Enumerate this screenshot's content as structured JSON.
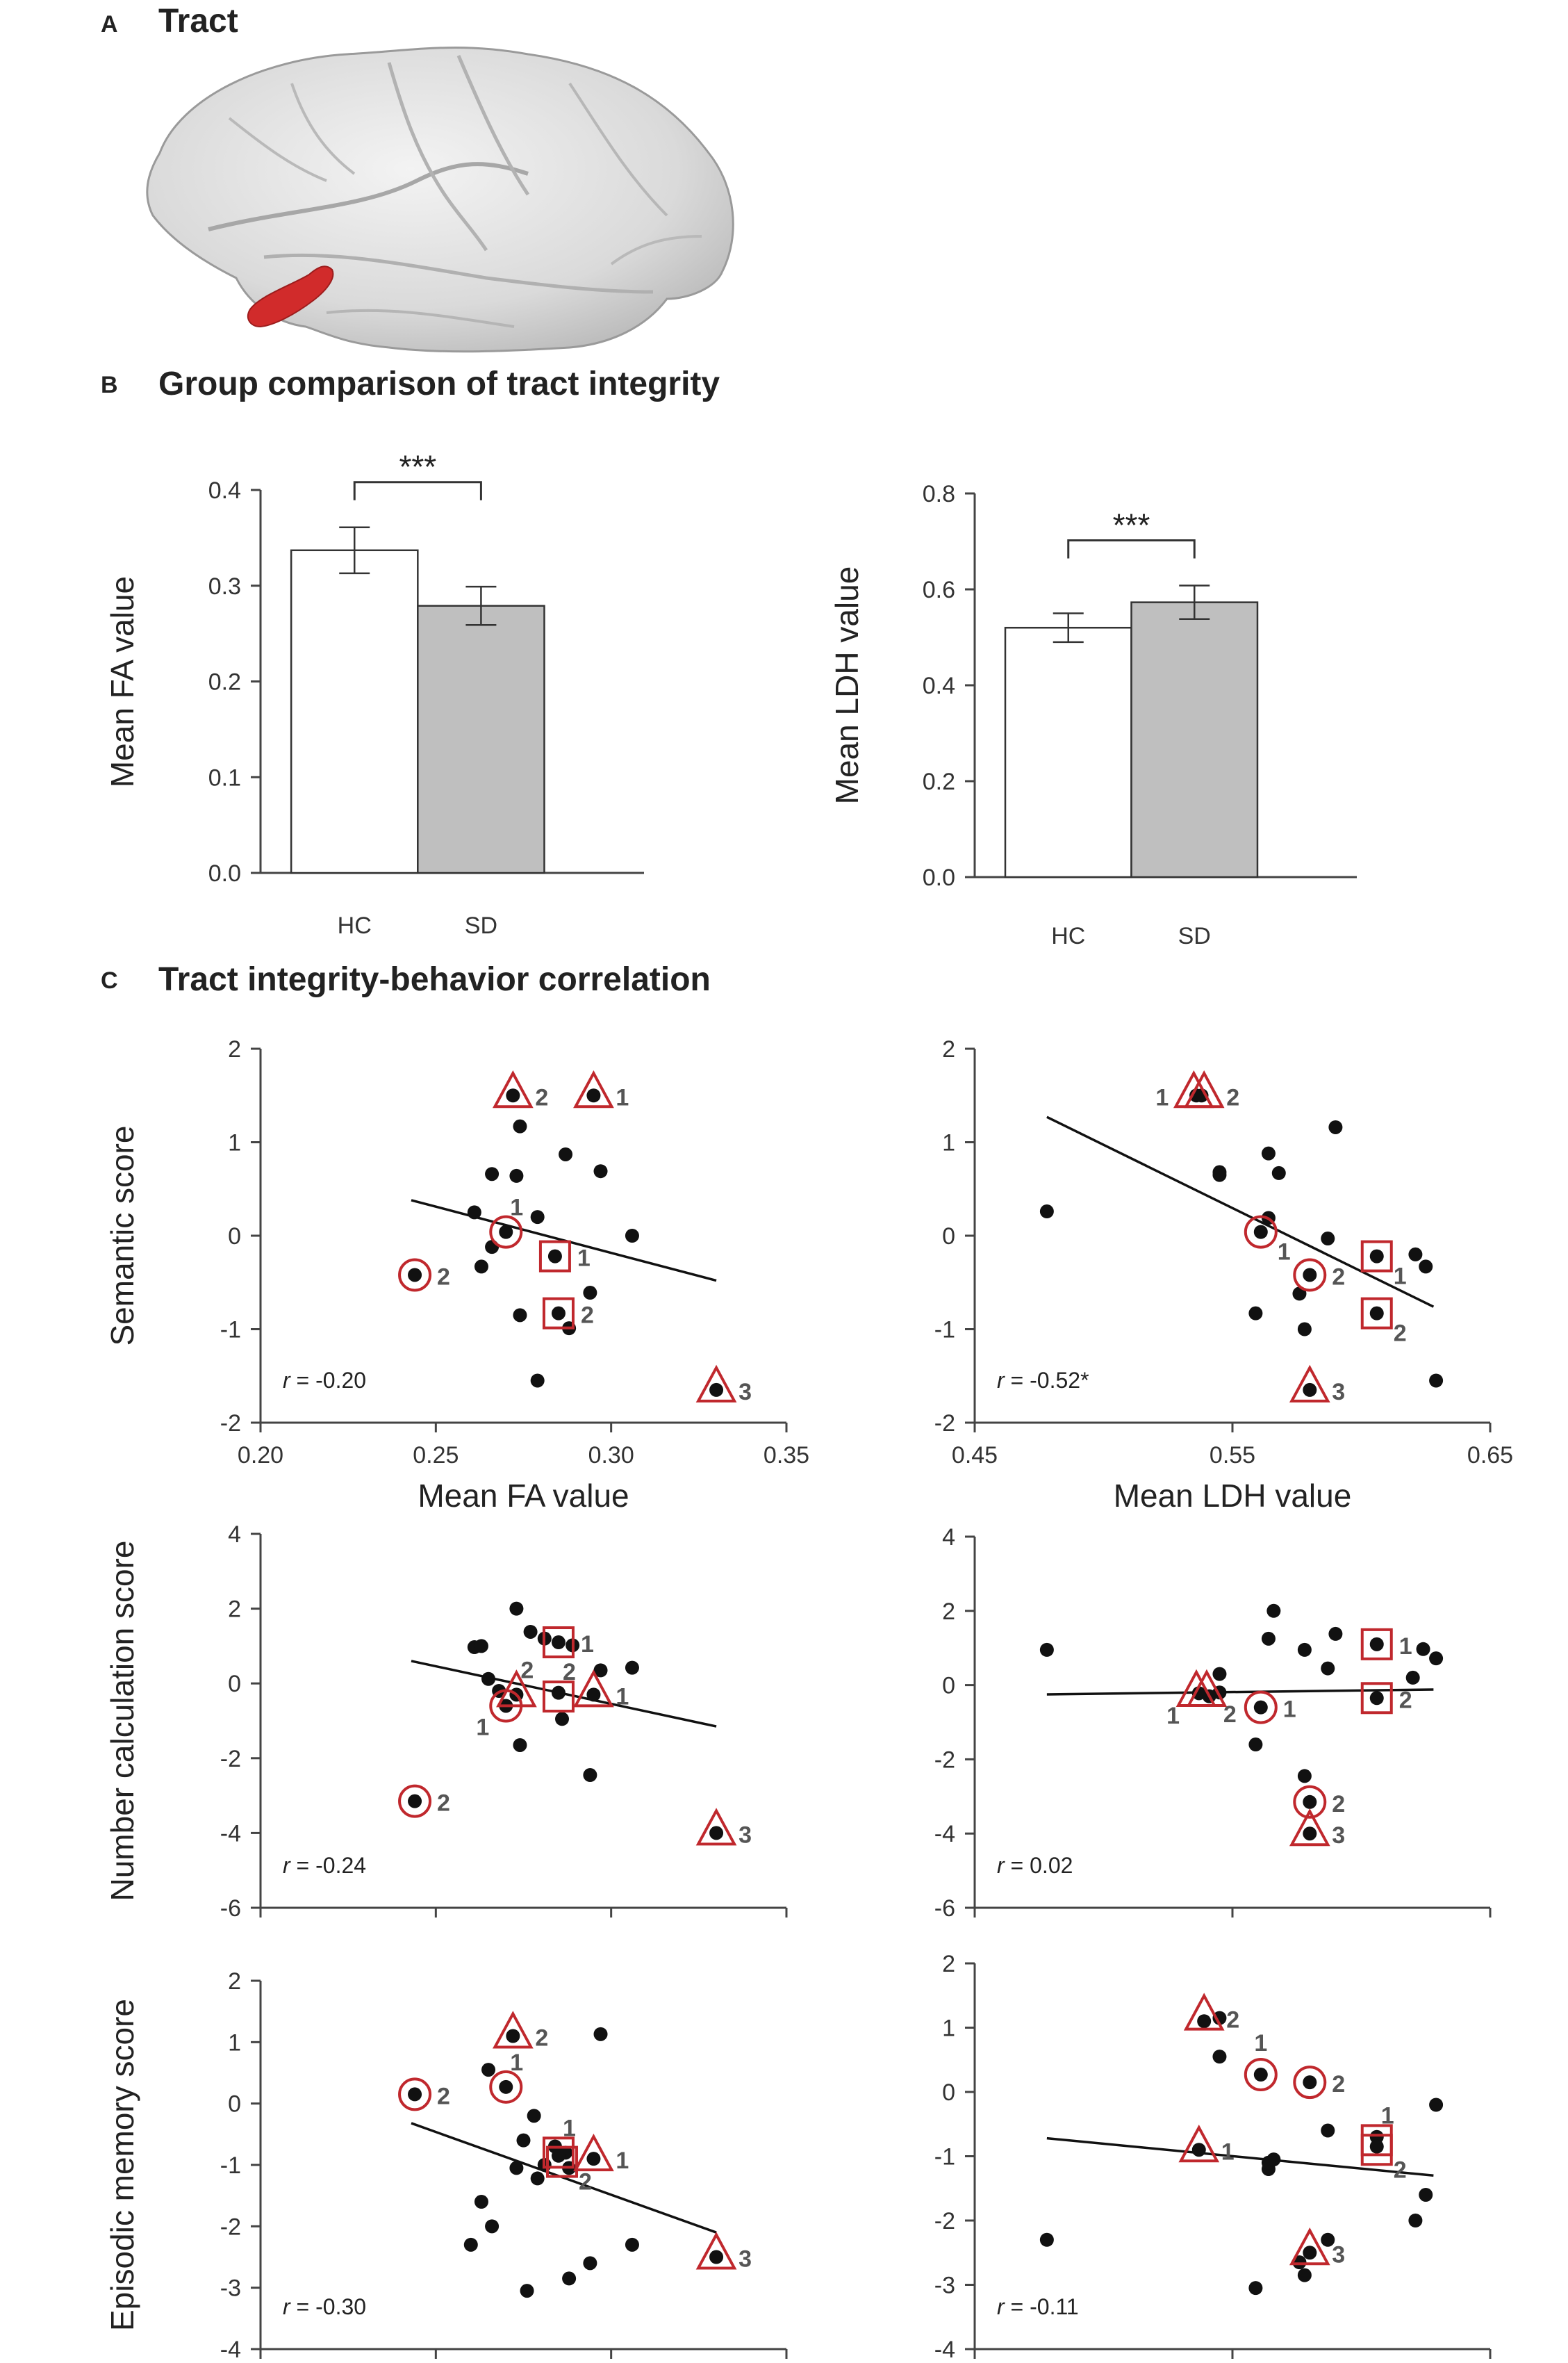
{
  "panel_a": {
    "letter": "A",
    "title": "Tract"
  },
  "panel_b": {
    "letter": "B",
    "title": "Group comparison of tract integrity"
  },
  "panel_c": {
    "letter": "C",
    "title": "Tract integrity-behavior correlation"
  },
  "colors": {
    "marker": "#c0282d",
    "hc_bar": "#ffffff",
    "sd_bar": "#bfbfbf",
    "brain": "#dcdcdc",
    "tract": "#d12b2b"
  },
  "chart_data": [
    {
      "id": "fa_bar",
      "type": "bar",
      "categories": [
        "HC",
        "SD"
      ],
      "values": [
        0.337,
        0.279
      ],
      "errors": [
        0.024,
        0.02
      ],
      "ylabel": "Mean FA value",
      "ylim": [
        0,
        0.4
      ],
      "yticks": [
        "0.0",
        "0.1",
        "0.2",
        "0.3",
        "0.4"
      ],
      "significance": "***"
    },
    {
      "id": "ldh_bar",
      "type": "bar",
      "categories": [
        "HC",
        "SD"
      ],
      "values": [
        0.52,
        0.573
      ],
      "errors": [
        0.03,
        0.035
      ],
      "ylabel": "Mean LDH value",
      "ylim": [
        0,
        0.8
      ],
      "yticks": [
        "0.0",
        "0.2",
        "0.4",
        "0.6",
        "0.8"
      ],
      "significance": "***"
    },
    {
      "id": "fa_sem",
      "type": "scatter",
      "xlim": [
        0.2,
        0.35
      ],
      "ylim": [
        -2,
        2
      ],
      "xticks": [
        "0.20",
        "0.25",
        "0.30",
        "0.35"
      ],
      "yticks": [
        "-2",
        "-1",
        "0",
        "1",
        "2"
      ],
      "xlabel": "Mean FA value",
      "ylabel": "Semantic score",
      "r_label": "r",
      "r_value": " = -0.20",
      "fit": [
        [
          0.243,
          0.38
        ],
        [
          0.33,
          -0.48
        ]
      ],
      "points": [
        [
          0.272,
          1.5
        ],
        [
          0.295,
          1.5
        ],
        [
          0.274,
          1.17
        ],
        [
          0.287,
          0.87
        ],
        [
          0.297,
          0.69
        ],
        [
          0.266,
          0.66
        ],
        [
          0.273,
          0.64
        ],
        [
          0.261,
          0.25
        ],
        [
          0.279,
          0.2
        ],
        [
          0.27,
          0.04
        ],
        [
          0.306,
          0.0
        ],
        [
          0.266,
          -0.12
        ],
        [
          0.284,
          -0.22
        ],
        [
          0.263,
          -0.33
        ],
        [
          0.244,
          -0.42
        ],
        [
          0.294,
          -0.61
        ],
        [
          0.285,
          -0.83
        ],
        [
          0.274,
          -0.85
        ],
        [
          0.288,
          -0.99
        ],
        [
          0.279,
          -1.55
        ],
        [
          0.33,
          -1.65
        ]
      ],
      "markers": [
        {
          "shape": "triangle",
          "x": 0.272,
          "y": 1.5,
          "label": "2"
        },
        {
          "shape": "triangle",
          "x": 0.295,
          "y": 1.5,
          "label": "1"
        },
        {
          "shape": "circle",
          "x": 0.27,
          "y": 0.04,
          "label": "1",
          "pos": "above-right"
        },
        {
          "shape": "square",
          "x": 0.284,
          "y": -0.22,
          "label": "1"
        },
        {
          "shape": "circle",
          "x": 0.244,
          "y": -0.42,
          "label": "2"
        },
        {
          "shape": "square",
          "x": 0.285,
          "y": -0.83,
          "label": "2"
        },
        {
          "shape": "triangle",
          "x": 0.33,
          "y": -1.65,
          "label": "3"
        }
      ]
    },
    {
      "id": "ldh_sem",
      "type": "scatter",
      "xlim": [
        0.45,
        0.65
      ],
      "ylim": [
        -2,
        2
      ],
      "xticks": [
        "0.45",
        "0.55",
        "0.65"
      ],
      "yticks": [
        "-2",
        "-1",
        "0",
        "1",
        "2"
      ],
      "xlabel": "Mean LDH value",
      "ylabel": "",
      "r_label": "r",
      "r_value": " = -0.52*",
      "fit": [
        [
          0.478,
          1.27
        ],
        [
          0.628,
          -0.76
        ]
      ],
      "points": [
        [
          0.536,
          1.5
        ],
        [
          0.538,
          1.5
        ],
        [
          0.59,
          1.16
        ],
        [
          0.564,
          0.88
        ],
        [
          0.545,
          0.68
        ],
        [
          0.545,
          0.65
        ],
        [
          0.568,
          0.67
        ],
        [
          0.478,
          0.26
        ],
        [
          0.564,
          0.19
        ],
        [
          0.561,
          0.04
        ],
        [
          0.587,
          -0.03
        ],
        [
          0.606,
          -0.22
        ],
        [
          0.621,
          -0.2
        ],
        [
          0.625,
          -0.33
        ],
        [
          0.58,
          -0.42
        ],
        [
          0.576,
          -0.62
        ],
        [
          0.559,
          -0.83
        ],
        [
          0.606,
          -0.83
        ],
        [
          0.578,
          -1.0
        ],
        [
          0.629,
          -1.55
        ],
        [
          0.58,
          -1.65
        ]
      ],
      "markers": [
        {
          "shape": "triangle",
          "x": 0.535,
          "y": 1.5,
          "label": "1",
          "pos": "left"
        },
        {
          "shape": "triangle",
          "x": 0.539,
          "y": 1.5,
          "label": "2"
        },
        {
          "shape": "circle",
          "x": 0.561,
          "y": 0.04,
          "label": "1",
          "pos": "below-right"
        },
        {
          "shape": "square",
          "x": 0.606,
          "y": -0.22,
          "label": "1",
          "pos": "below-right"
        },
        {
          "shape": "circle",
          "x": 0.58,
          "y": -0.42,
          "label": "2"
        },
        {
          "shape": "square",
          "x": 0.606,
          "y": -0.83,
          "label": "2",
          "pos": "below-right"
        },
        {
          "shape": "triangle",
          "x": 0.58,
          "y": -1.65,
          "label": "3"
        }
      ]
    },
    {
      "id": "fa_num",
      "type": "scatter",
      "xlim": [
        0.2,
        0.35
      ],
      "ylim": [
        -6,
        4
      ],
      "xticks": [],
      "yticks": [
        "-6",
        "-4",
        "-2",
        "0",
        "2",
        "4"
      ],
      "xlabel": "",
      "ylabel": "Number calculation score",
      "r_label": "r",
      "r_value": " = -0.24",
      "fit": [
        [
          0.243,
          0.6
        ],
        [
          0.33,
          -1.15
        ]
      ],
      "points": [
        [
          0.273,
          2.0
        ],
        [
          0.261,
          0.97
        ],
        [
          0.263,
          1.0
        ],
        [
          0.277,
          1.38
        ],
        [
          0.281,
          1.2
        ],
        [
          0.285,
          1.1
        ],
        [
          0.289,
          1.02
        ],
        [
          0.297,
          0.35
        ],
        [
          0.306,
          0.42
        ],
        [
          0.265,
          0.12
        ],
        [
          0.268,
          -0.2
        ],
        [
          0.273,
          -0.3
        ],
        [
          0.285,
          -0.25
        ],
        [
          0.295,
          -0.3
        ],
        [
          0.27,
          -0.6
        ],
        [
          0.286,
          -0.95
        ],
        [
          0.274,
          -1.65
        ],
        [
          0.294,
          -2.45
        ],
        [
          0.244,
          -3.15
        ],
        [
          0.33,
          -4.0
        ]
      ],
      "markers": [
        {
          "shape": "square",
          "x": 0.285,
          "y": 1.1,
          "label": "1"
        },
        {
          "shape": "triangle",
          "x": 0.273,
          "y": -0.3,
          "label": "2",
          "pos": "above-right"
        },
        {
          "shape": "square",
          "x": 0.285,
          "y": -0.35,
          "label": "2",
          "pos": "above-right"
        },
        {
          "shape": "triangle",
          "x": 0.295,
          "y": -0.3,
          "label": "1"
        },
        {
          "shape": "circle",
          "x": 0.27,
          "y": -0.6,
          "label": "1",
          "pos": "below-left"
        },
        {
          "shape": "circle",
          "x": 0.244,
          "y": -3.15,
          "label": "2"
        },
        {
          "shape": "triangle",
          "x": 0.33,
          "y": -4.0,
          "label": "3"
        }
      ]
    },
    {
      "id": "ldh_num",
      "type": "scatter",
      "xlim": [
        0.45,
        0.65
      ],
      "ylim": [
        -6,
        4
      ],
      "xticks": [],
      "yticks": [
        "-6",
        "-4",
        "-2",
        "0",
        "2",
        "4"
      ],
      "xlabel": "",
      "ylabel": "",
      "r_label": "r",
      "r_value": " = 0.02",
      "fit": [
        [
          0.478,
          -0.25
        ],
        [
          0.628,
          -0.12
        ]
      ],
      "points": [
        [
          0.478,
          0.95
        ],
        [
          0.566,
          2.0
        ],
        [
          0.564,
          1.25
        ],
        [
          0.59,
          1.38
        ],
        [
          0.578,
          0.95
        ],
        [
          0.606,
          1.1
        ],
        [
          0.624,
          0.97
        ],
        [
          0.629,
          0.72
        ],
        [
          0.587,
          0.45
        ],
        [
          0.62,
          0.2
        ],
        [
          0.545,
          0.3
        ],
        [
          0.537,
          -0.22
        ],
        [
          0.541,
          -0.3
        ],
        [
          0.545,
          -0.2
        ],
        [
          0.606,
          -0.35
        ],
        [
          0.561,
          -0.6
        ],
        [
          0.559,
          -1.6
        ],
        [
          0.578,
          -2.45
        ],
        [
          0.58,
          -3.15
        ],
        [
          0.58,
          -4.0
        ]
      ],
      "markers": [
        {
          "shape": "square",
          "x": 0.606,
          "y": 1.1,
          "label": "1"
        },
        {
          "shape": "triangle",
          "x": 0.536,
          "y": -0.25,
          "label": "1",
          "pos": "below-left"
        },
        {
          "shape": "triangle",
          "x": 0.54,
          "y": -0.25,
          "label": "2",
          "pos": "below-right"
        },
        {
          "shape": "circle",
          "x": 0.561,
          "y": -0.6,
          "label": "1"
        },
        {
          "shape": "square",
          "x": 0.606,
          "y": -0.35,
          "label": "2"
        },
        {
          "shape": "circle",
          "x": 0.58,
          "y": -3.15,
          "label": "2"
        },
        {
          "shape": "triangle",
          "x": 0.58,
          "y": -4.0,
          "label": "3"
        }
      ]
    },
    {
      "id": "fa_epi",
      "type": "scatter",
      "xlim": [
        0.2,
        0.35
      ],
      "ylim": [
        -4,
        2
      ],
      "xticks": [],
      "yticks": [
        "-4",
        "-3",
        "-2",
        "-1",
        "0",
        "1",
        "2"
      ],
      "xlabel": "",
      "ylabel": "Episodic memory score",
      "r_label": "r",
      "r_value": " = -0.30",
      "fit": [
        [
          0.243,
          -0.32
        ],
        [
          0.33,
          -2.1
        ]
      ],
      "points": [
        [
          0.272,
          1.1
        ],
        [
          0.297,
          1.13
        ],
        [
          0.265,
          0.55
        ],
        [
          0.27,
          0.27
        ],
        [
          0.244,
          0.15
        ],
        [
          0.278,
          -0.2
        ],
        [
          0.275,
          -0.6
        ],
        [
          0.284,
          -0.7
        ],
        [
          0.287,
          -0.8
        ],
        [
          0.285,
          -0.85
        ],
        [
          0.295,
          -0.9
        ],
        [
          0.281,
          -1.0
        ],
        [
          0.288,
          -1.05
        ],
        [
          0.273,
          -1.05
        ],
        [
          0.279,
          -1.22
        ],
        [
          0.263,
          -1.6
        ],
        [
          0.266,
          -2.0
        ],
        [
          0.26,
          -2.3
        ],
        [
          0.306,
          -2.3
        ],
        [
          0.294,
          -2.6
        ],
        [
          0.288,
          -2.85
        ],
        [
          0.276,
          -3.05
        ],
        [
          0.33,
          -2.5
        ]
      ],
      "markers": [
        {
          "shape": "triangle",
          "x": 0.272,
          "y": 1.1,
          "label": "2"
        },
        {
          "shape": "circle",
          "x": 0.244,
          "y": 0.15,
          "label": "2"
        },
        {
          "shape": "circle",
          "x": 0.27,
          "y": 0.27,
          "label": "1",
          "pos": "above-right"
        },
        {
          "shape": "square",
          "x": 0.285,
          "y": -0.8,
          "label": "1",
          "pos": "above-right"
        },
        {
          "shape": "square",
          "x": 0.286,
          "y": -0.95,
          "label": "2",
          "pos": "below-right"
        },
        {
          "shape": "triangle",
          "x": 0.295,
          "y": -0.9,
          "label": "1"
        },
        {
          "shape": "triangle",
          "x": 0.33,
          "y": -2.5,
          "label": "3"
        }
      ]
    },
    {
      "id": "ldh_epi",
      "type": "scatter",
      "xlim": [
        0.45,
        0.65
      ],
      "ylim": [
        -4,
        2
      ],
      "xticks": [],
      "yticks": [
        "-4",
        "-3",
        "-2",
        "-1",
        "0",
        "1",
        "2"
      ],
      "xlabel": "",
      "ylabel": "",
      "r_label": "r",
      "r_value": " = -0.11",
      "fit": [
        [
          0.478,
          -0.72
        ],
        [
          0.628,
          -1.3
        ]
      ],
      "points": [
        [
          0.539,
          1.1
        ],
        [
          0.545,
          1.15
        ],
        [
          0.545,
          0.55
        ],
        [
          0.561,
          0.27
        ],
        [
          0.58,
          0.15
        ],
        [
          0.629,
          -0.2
        ],
        [
          0.587,
          -0.6
        ],
        [
          0.606,
          -0.7
        ],
        [
          0.606,
          -0.85
        ],
        [
          0.537,
          -0.9
        ],
        [
          0.566,
          -1.05
        ],
        [
          0.564,
          -1.2
        ],
        [
          0.564,
          -1.1
        ],
        [
          0.625,
          -1.6
        ],
        [
          0.621,
          -2.0
        ],
        [
          0.478,
          -2.3
        ],
        [
          0.587,
          -2.3
        ],
        [
          0.58,
          -2.5
        ],
        [
          0.576,
          -2.65
        ],
        [
          0.578,
          -2.85
        ],
        [
          0.559,
          -3.05
        ]
      ],
      "markers": [
        {
          "shape": "triangle",
          "x": 0.539,
          "y": 1.15,
          "label": "2"
        },
        {
          "shape": "circle",
          "x": 0.561,
          "y": 0.27,
          "label": "1",
          "pos": "above"
        },
        {
          "shape": "circle",
          "x": 0.58,
          "y": 0.15,
          "label": "2"
        },
        {
          "shape": "square",
          "x": 0.606,
          "y": -0.75,
          "label": "1",
          "pos": "above-right"
        },
        {
          "shape": "square",
          "x": 0.606,
          "y": -0.9,
          "label": "2",
          "pos": "below-right"
        },
        {
          "shape": "triangle",
          "x": 0.537,
          "y": -0.9,
          "label": "1"
        },
        {
          "shape": "triangle",
          "x": 0.58,
          "y": -2.5,
          "label": "3"
        }
      ]
    }
  ]
}
